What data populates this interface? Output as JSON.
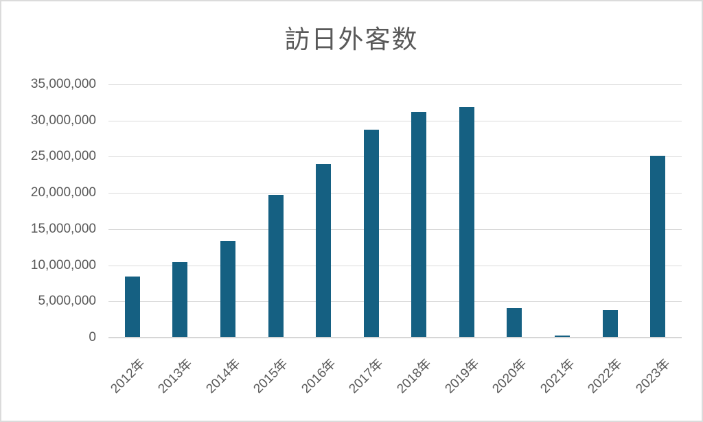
{
  "window": {
    "background_color": "#FFFFFF",
    "frame_border_color": "#DBDBDB"
  },
  "chart_data": {
    "type": "bar",
    "title": "訪日外客数",
    "categories": [
      "2012年",
      "2013年",
      "2014年",
      "2015年",
      "2016年",
      "2017年",
      "2018年",
      "2019年",
      "2020年",
      "2021年",
      "2022年",
      "2023年"
    ],
    "values": [
      8400000,
      10400000,
      13400000,
      19700000,
      24000000,
      28700000,
      31200000,
      31900000,
      4100000,
      250000,
      3800000,
      25100000
    ],
    "xlabel": "",
    "ylabel": "",
    "ylim": [
      0,
      35000000
    ],
    "y_tick_interval": 5000000,
    "y_tick_labels_top_to_bottom": [
      "35,000,000",
      "30,000,000",
      "25,000,000",
      "20,000,000",
      "15,000,000",
      "10,000,000",
      "5,000,000",
      "0"
    ],
    "grid": true,
    "legend_position": "none",
    "x_label_rotation_deg": -45,
    "bar_color": "#156082",
    "text_color": "#595959",
    "gridline_color": "#D9D9D9"
  }
}
